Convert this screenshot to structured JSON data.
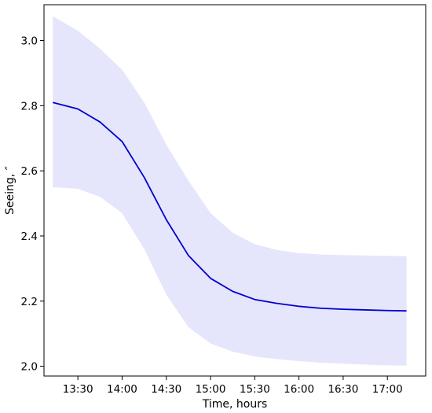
{
  "chart_data": {
    "type": "line",
    "title": "",
    "xlabel": "Time, hours",
    "ylabel": "Seeing, ″",
    "x_unit": "hours",
    "xlim": [
      "13:07",
      "17:26"
    ],
    "ylim": [
      1.97,
      3.11
    ],
    "grid": false,
    "legend": "none",
    "x_ticks": [
      "13:30",
      "14:00",
      "14:30",
      "15:00",
      "15:30",
      "16:00",
      "16:30",
      "17:00"
    ],
    "y_ticks": [
      "2.0",
      "2.2",
      "2.4",
      "2.6",
      "2.8",
      "3.0"
    ],
    "colors": {
      "line": "#0000cc",
      "band": "#e5e5fc"
    },
    "series": [
      {
        "x": [
          "13:13",
          "13:30",
          "13:45",
          "14:00",
          "14:15",
          "14:30",
          "14:45",
          "15:00",
          "15:15",
          "15:30",
          "15:45",
          "16:00",
          "16:15",
          "16:30",
          "16:45",
          "17:00",
          "17:13"
        ],
        "y": [
          2.81,
          2.79,
          2.75,
          2.69,
          2.58,
          2.45,
          2.34,
          2.27,
          2.23,
          2.205,
          2.193,
          2.184,
          2.178,
          2.175,
          2.173,
          2.171,
          2.17
        ],
        "lower": [
          2.55,
          2.545,
          2.52,
          2.47,
          2.36,
          2.22,
          2.12,
          2.07,
          2.045,
          2.03,
          2.022,
          2.016,
          2.011,
          2.008,
          2.005,
          2.003,
          2.002
        ],
        "upper": [
          3.075,
          3.03,
          2.975,
          2.91,
          2.81,
          2.68,
          2.57,
          2.47,
          2.41,
          2.375,
          2.357,
          2.347,
          2.343,
          2.341,
          2.34,
          2.339,
          2.338
        ]
      }
    ]
  }
}
